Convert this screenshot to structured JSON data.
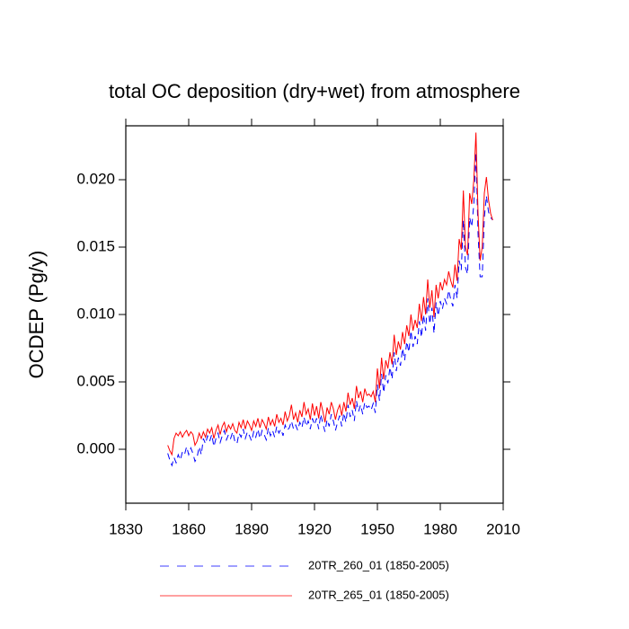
{
  "chart_data": {
    "type": "line",
    "title": "total OC deposition (dry+wet) from atmosphere",
    "y_label": "OCDEP  (Pg/y)",
    "x": [
      1850,
      1851,
      1852,
      1853,
      1854,
      1855,
      1856,
      1857,
      1858,
      1859,
      1860,
      1861,
      1862,
      1863,
      1864,
      1865,
      1866,
      1867,
      1868,
      1869,
      1870,
      1871,
      1872,
      1873,
      1874,
      1875,
      1876,
      1877,
      1878,
      1879,
      1880,
      1881,
      1882,
      1883,
      1884,
      1885,
      1886,
      1887,
      1888,
      1889,
      1890,
      1891,
      1892,
      1893,
      1894,
      1895,
      1896,
      1897,
      1898,
      1899,
      1900,
      1901,
      1902,
      1903,
      1904,
      1905,
      1906,
      1907,
      1908,
      1909,
      1910,
      1911,
      1912,
      1913,
      1914,
      1915,
      1916,
      1917,
      1918,
      1919,
      1920,
      1921,
      1922,
      1923,
      1924,
      1925,
      1926,
      1927,
      1928,
      1929,
      1930,
      1931,
      1932,
      1933,
      1934,
      1935,
      1936,
      1937,
      1938,
      1939,
      1940,
      1941,
      1942,
      1943,
      1944,
      1945,
      1946,
      1947,
      1948,
      1949,
      1950,
      1951,
      1952,
      1953,
      1954,
      1955,
      1956,
      1957,
      1958,
      1959,
      1960,
      1961,
      1962,
      1963,
      1964,
      1965,
      1966,
      1967,
      1968,
      1969,
      1970,
      1971,
      1972,
      1973,
      1974,
      1975,
      1976,
      1977,
      1978,
      1979,
      1980,
      1981,
      1982,
      1983,
      1984,
      1985,
      1986,
      1987,
      1988,
      1989,
      1990,
      1991,
      1992,
      1993,
      1994,
      1995,
      1996,
      1997,
      1998,
      1999,
      2000,
      2001,
      2002,
      2003,
      2004,
      2005
    ],
    "series": [
      {
        "name": "20TR_260_01 (1850-2005)",
        "color": "#0000ff",
        "style": "dashed",
        "values": [
          -0.0003,
          -0.0008,
          -0.0012,
          -0.0006,
          -0.001,
          -0.0004,
          -0.0008,
          -0.0002,
          -0.0004,
          0.0002,
          -0.0004,
          0.0001,
          -0.0003,
          -0.0009,
          -0.0006,
          0.0002,
          -0.0004,
          0.0008,
          0.0004,
          0.001,
          0.0006,
          0.0011,
          0.0002,
          0.0008,
          0.0012,
          0.0005,
          0.001,
          0.0014,
          0.0007,
          0.0011,
          0.0008,
          0.0013,
          0.0006,
          0.0004,
          0.0012,
          0.0009,
          0.0015,
          0.0008,
          0.0013,
          0.001,
          0.0006,
          0.0013,
          0.0009,
          0.0015,
          0.0008,
          0.0014,
          0.0011,
          0.0007,
          0.0016,
          0.001,
          0.0014,
          0.0009,
          0.0017,
          0.0012,
          0.0015,
          0.001,
          0.0018,
          0.0014,
          0.0016,
          0.0021,
          0.0015,
          0.0018,
          0.0014,
          0.002,
          0.0016,
          0.0024,
          0.0017,
          0.0021,
          0.0015,
          0.0023,
          0.0018,
          0.0023,
          0.0015,
          0.0026,
          0.0019,
          0.0013,
          0.0022,
          0.0017,
          0.0026,
          0.0021,
          0.0014,
          0.002,
          0.0025,
          0.0017,
          0.0027,
          0.002,
          0.0033,
          0.0024,
          0.0029,
          0.0021,
          0.0036,
          0.0028,
          0.0033,
          0.0026,
          0.0035,
          0.0031,
          0.0032,
          0.0029,
          0.0034,
          0.0027,
          0.0048,
          0.0036,
          0.0056,
          0.0042,
          0.0055,
          0.0049,
          0.0061,
          0.0052,
          0.0072,
          0.0058,
          0.0068,
          0.0062,
          0.0075,
          0.0066,
          0.008,
          0.0072,
          0.0088,
          0.0076,
          0.0084,
          0.0078,
          0.0095,
          0.0083,
          0.01,
          0.0088,
          0.0112,
          0.0093,
          0.0105,
          0.0086,
          0.0109,
          0.0099,
          0.011,
          0.0104,
          0.0112,
          0.0108,
          0.0118,
          0.0111,
          0.0106,
          0.0122,
          0.0112,
          0.014,
          0.0133,
          0.017,
          0.0135,
          0.013,
          0.0172,
          0.0165,
          0.0182,
          0.022,
          0.016,
          0.0128,
          0.0128,
          0.0172,
          0.0188,
          0.0176,
          0.0172,
          0.017
        ]
      },
      {
        "name": "20TR_265_01 (1850-2005)",
        "color": "#ff0000",
        "style": "solid",
        "values": [
          0.0003,
          -0.0001,
          -0.0004,
          0.0008,
          0.0012,
          0.001,
          0.0013,
          0.0009,
          0.0012,
          0.0014,
          0.001,
          0.0013,
          0.0011,
          0.0003,
          0.0006,
          0.0012,
          0.0008,
          0.0013,
          0.0009,
          0.0015,
          0.0012,
          0.0016,
          0.0008,
          0.0014,
          0.0018,
          0.0011,
          0.0017,
          0.002,
          0.0013,
          0.0018,
          0.0015,
          0.0019,
          0.0014,
          0.0012,
          0.002,
          0.0016,
          0.0022,
          0.0015,
          0.0021,
          0.0018,
          0.0014,
          0.0021,
          0.0017,
          0.0023,
          0.0016,
          0.0022,
          0.0019,
          0.0015,
          0.0024,
          0.0018,
          0.0022,
          0.0017,
          0.0026,
          0.002,
          0.0023,
          0.0018,
          0.0028,
          0.0021,
          0.0025,
          0.0033,
          0.0022,
          0.0027,
          0.002,
          0.0029,
          0.0024,
          0.0035,
          0.0026,
          0.003,
          0.0022,
          0.0034,
          0.0025,
          0.0032,
          0.0023,
          0.0035,
          0.0028,
          0.002,
          0.0031,
          0.0026,
          0.0035,
          0.003,
          0.0022,
          0.0029,
          0.0033,
          0.0025,
          0.0035,
          0.0028,
          0.0042,
          0.0033,
          0.0038,
          0.003,
          0.0047,
          0.0038,
          0.0043,
          0.0035,
          0.0045,
          0.004,
          0.0041,
          0.0039,
          0.0043,
          0.0035,
          0.006,
          0.0045,
          0.0068,
          0.0052,
          0.0066,
          0.006,
          0.0072,
          0.0063,
          0.0085,
          0.007,
          0.008,
          0.0074,
          0.0087,
          0.0078,
          0.0092,
          0.0084,
          0.01,
          0.0088,
          0.0096,
          0.009,
          0.0108,
          0.0095,
          0.0113,
          0.01,
          0.0126,
          0.0105,
          0.0118,
          0.0098,
          0.0122,
          0.0112,
          0.0124,
          0.0118,
          0.0126,
          0.0122,
          0.0132,
          0.0125,
          0.012,
          0.0137,
          0.0125,
          0.0156,
          0.0148,
          0.0192,
          0.015,
          0.0144,
          0.019,
          0.0182,
          0.02,
          0.0235,
          0.0175,
          0.014,
          0.015,
          0.019,
          0.0202,
          0.0185,
          0.0175,
          0.017
        ]
      }
    ],
    "xlim": [
      1830,
      2010
    ],
    "xticks": [
      1830,
      1860,
      1890,
      1920,
      1950,
      1980,
      2010
    ],
    "ylim": [
      -0.004,
      0.024
    ],
    "yticks": [
      {
        "value": 0,
        "label": "0.000"
      },
      {
        "value": 0.005,
        "label": "0.005"
      },
      {
        "value": 0.01,
        "label": "0.010"
      },
      {
        "value": 0.015,
        "label": "0.015"
      },
      {
        "value": 0.02,
        "label": "0.020"
      }
    ],
    "grid": false,
    "legend": "bottom"
  }
}
